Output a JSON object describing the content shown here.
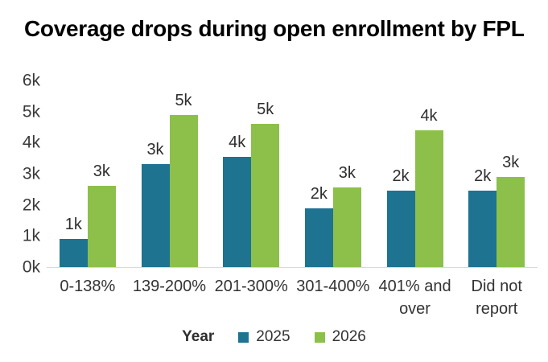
{
  "title": "Coverage drops during open enrollment by FPL",
  "chart_data": {
    "type": "bar",
    "grouped": true,
    "title": "Coverage drops during open enrollment by FPL",
    "categories": [
      "0-138%",
      "139-200%",
      "201-300%",
      "301-400%",
      "401% and over",
      "Did not report"
    ],
    "series": [
      {
        "name": "2025",
        "color": "#1E7390",
        "values": [
          900,
          3300,
          3550,
          1900,
          2450,
          2450
        ],
        "data_labels": [
          "1k",
          "3k",
          "4k",
          "2k",
          "2k",
          "2k"
        ]
      },
      {
        "name": "2026",
        "color": "#8CC04A",
        "values": [
          2600,
          4900,
          4600,
          2550,
          4400,
          2900
        ],
        "data_labels": [
          "3k",
          "5k",
          "5k",
          "3k",
          "4k",
          "3k"
        ]
      }
    ],
    "xlabel": "",
    "ylabel": "",
    "ylim": [
      0,
      6000
    ],
    "ytick_labels": [
      "0k",
      "1k",
      "2k",
      "3k",
      "4k",
      "5k",
      "6k"
    ],
    "grid": false,
    "legend_title": "Year",
    "legend_position": "bottom"
  },
  "colors": {
    "series_2025": "#1E7390",
    "series_2026": "#8CC04A",
    "title_text": "#000000",
    "axis_text": "#3A3A3A",
    "baseline": "#D9D9D9",
    "background": "#FFFFFF"
  }
}
